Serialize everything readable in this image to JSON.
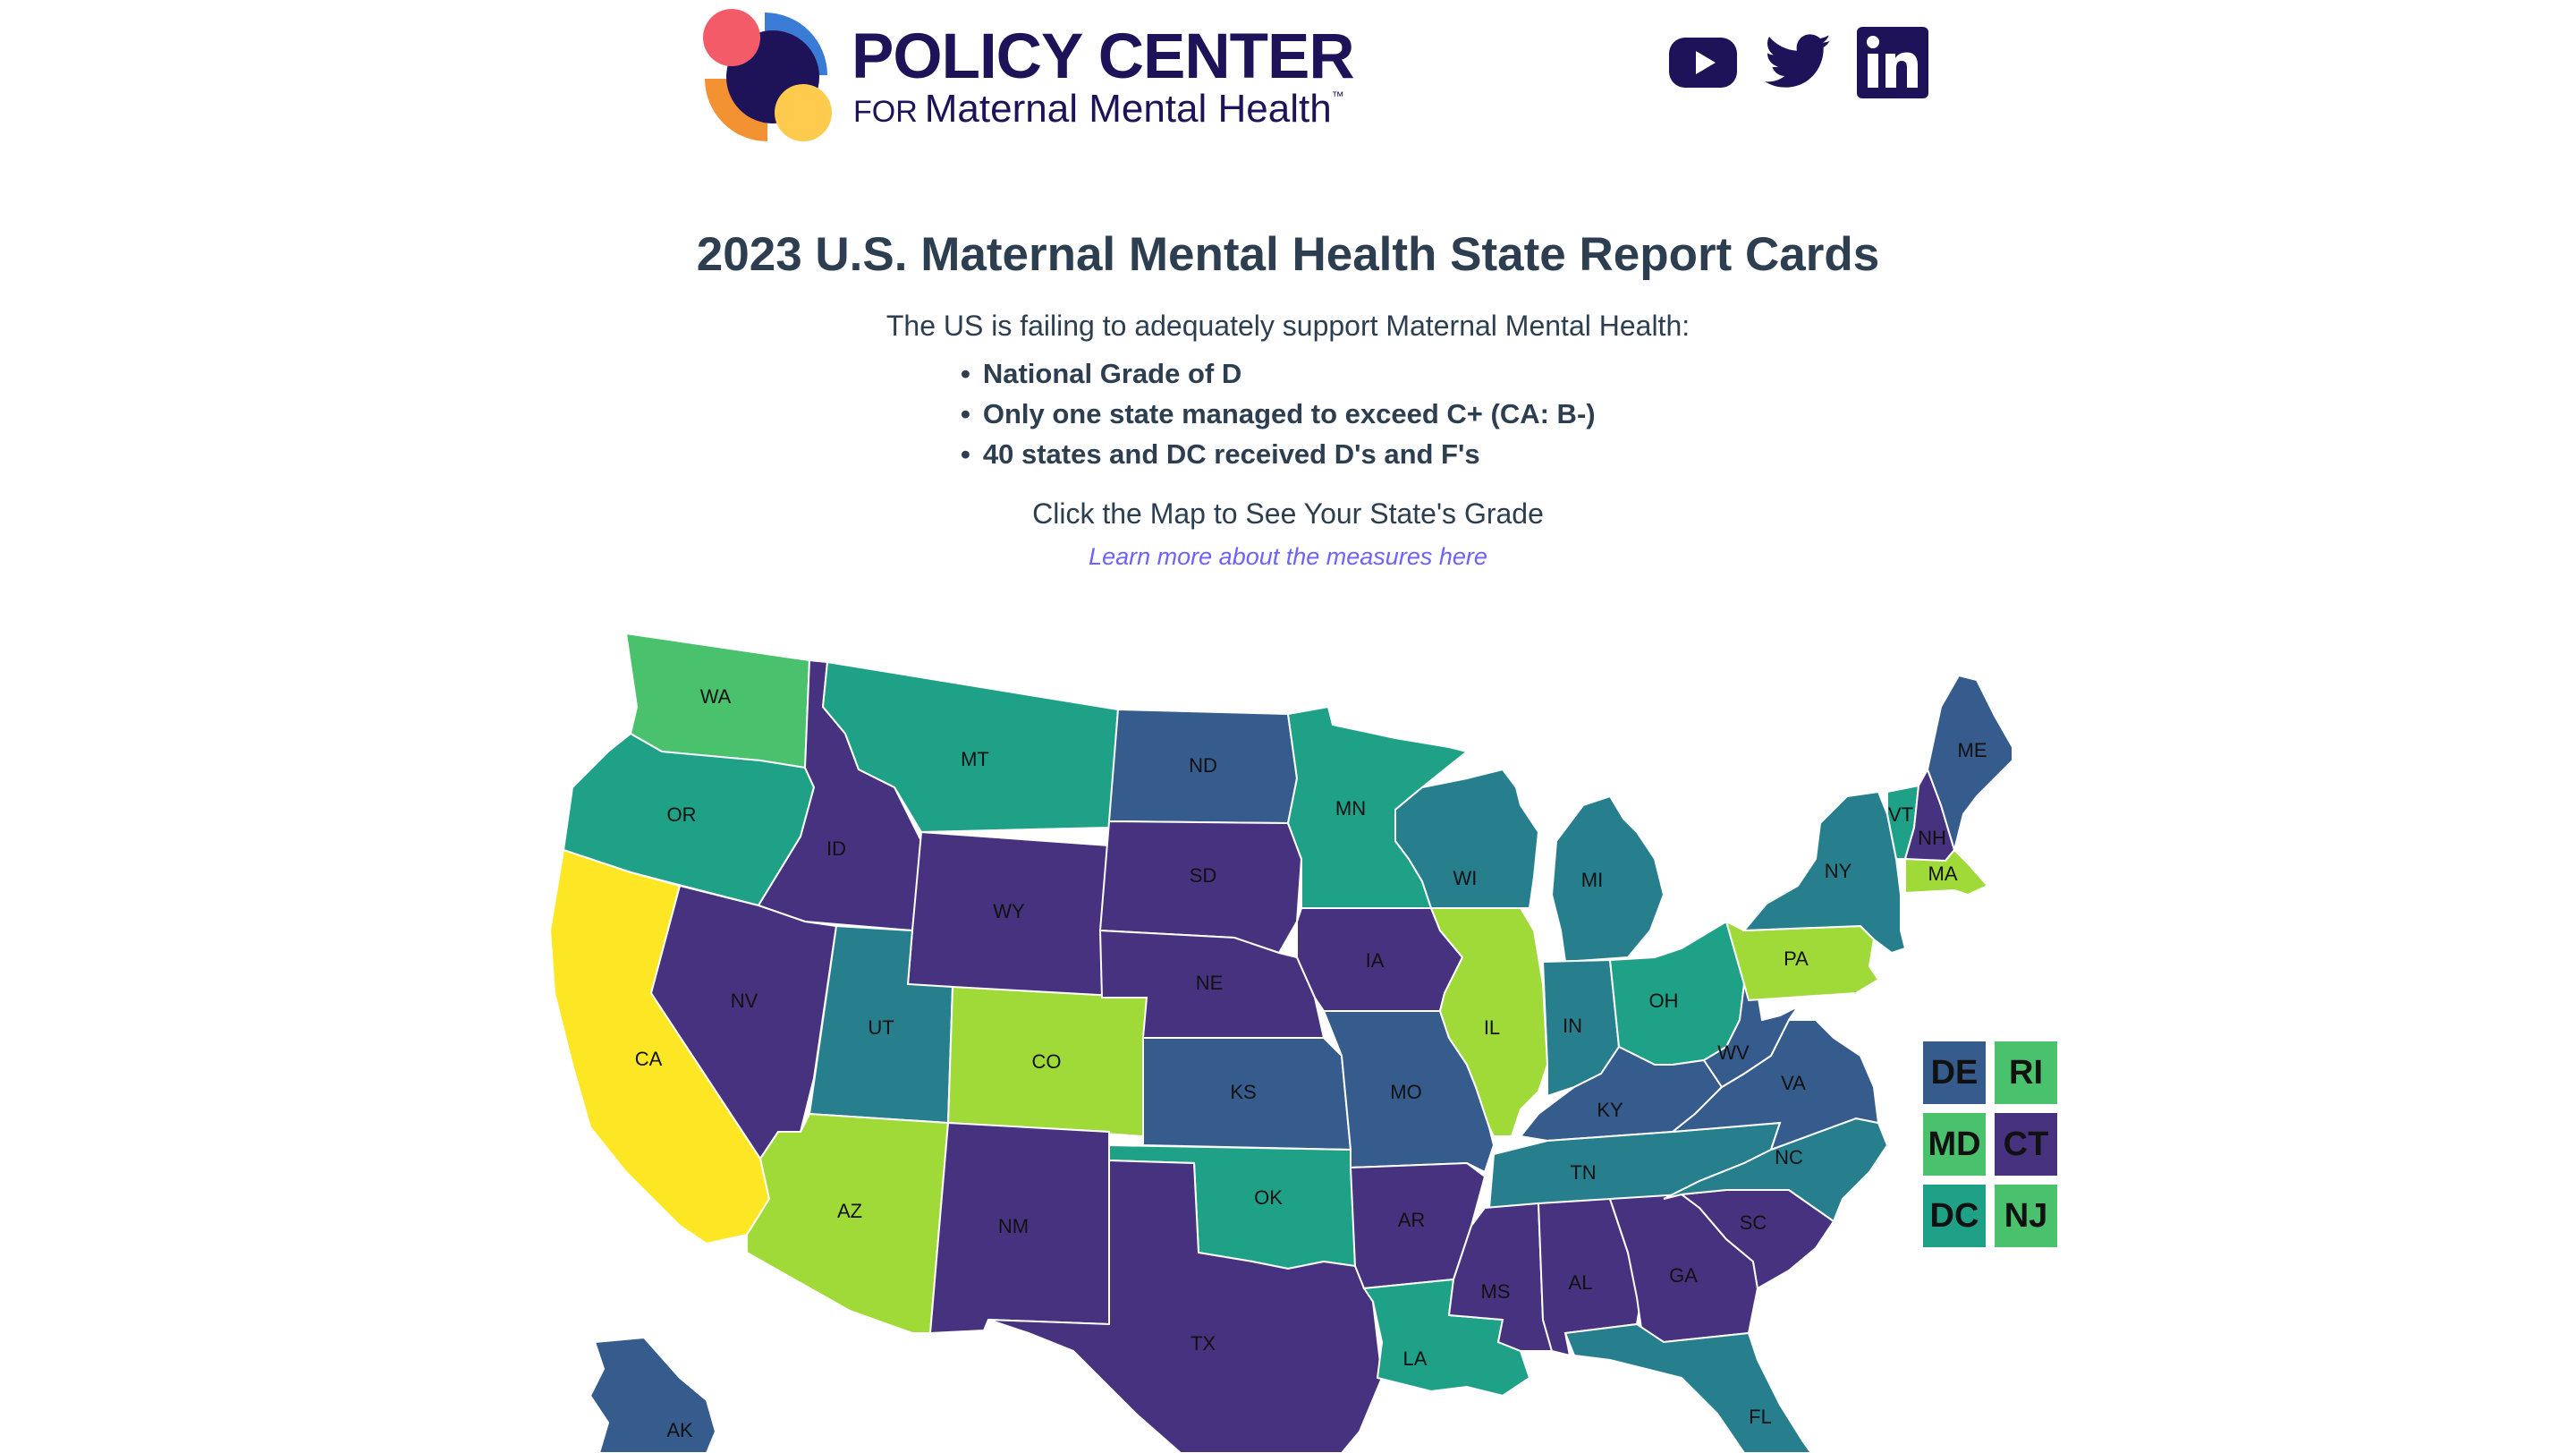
{
  "header": {
    "brand_line1": "POLICY CENTER",
    "brand_line2_prefix": "FOR",
    "brand_line2": "Maternal Mental Health",
    "brand_tm": "™",
    "social": [
      "youtube-icon",
      "twitter-icon",
      "linkedin-icon"
    ]
  },
  "main": {
    "title": "2023 U.S. Maternal Mental Health State Report Cards",
    "intro": "The US is failing to adequately support Maternal Mental Health:",
    "bullets": [
      "National Grade of D",
      "Only one state managed to exceed C+ (CA: B-)",
      "40 states and DC received D's and F's"
    ],
    "click_text": "Click the Map to See Your State's Grade",
    "learn_link": "Learn more about the measures here"
  },
  "colors": {
    "yellow": "#fde725",
    "lime": "#a0da39",
    "green": "#4ac16d",
    "teal_green": "#1fa187",
    "teal": "#277f8e",
    "blue": "#365c8d",
    "purple": "#46327e",
    "brand_navy": "#1e1259",
    "link": "#6c63ff"
  },
  "states": [
    {
      "abbr": "WA"
    },
    {
      "abbr": "OR"
    },
    {
      "abbr": "CA"
    },
    {
      "abbr": "ID"
    },
    {
      "abbr": "NV"
    },
    {
      "abbr": "MT"
    },
    {
      "abbr": "WY"
    },
    {
      "abbr": "UT"
    },
    {
      "abbr": "AZ"
    },
    {
      "abbr": "CO"
    },
    {
      "abbr": "NM"
    },
    {
      "abbr": "ND"
    },
    {
      "abbr": "SD"
    },
    {
      "abbr": "NE"
    },
    {
      "abbr": "KS"
    },
    {
      "abbr": "OK"
    },
    {
      "abbr": "TX"
    },
    {
      "abbr": "MN"
    },
    {
      "abbr": "IA"
    },
    {
      "abbr": "MO"
    },
    {
      "abbr": "AR"
    },
    {
      "abbr": "LA"
    },
    {
      "abbr": "WI"
    },
    {
      "abbr": "IL"
    },
    {
      "abbr": "MI"
    },
    {
      "abbr": "IN"
    },
    {
      "abbr": "OH"
    },
    {
      "abbr": "KY"
    },
    {
      "abbr": "TN"
    },
    {
      "abbr": "MS"
    },
    {
      "abbr": "AL"
    },
    {
      "abbr": "GA"
    },
    {
      "abbr": "FL"
    },
    {
      "abbr": "SC"
    },
    {
      "abbr": "NC"
    },
    {
      "abbr": "VA"
    },
    {
      "abbr": "WV"
    },
    {
      "abbr": "PA"
    },
    {
      "abbr": "NY"
    },
    {
      "abbr": "VT"
    },
    {
      "abbr": "NH"
    },
    {
      "abbr": "ME"
    },
    {
      "abbr": "MA"
    },
    {
      "abbr": "AK"
    }
  ],
  "small_states": [
    {
      "abbr": "DE"
    },
    {
      "abbr": "RI"
    },
    {
      "abbr": "MD"
    },
    {
      "abbr": "CT"
    },
    {
      "abbr": "DC"
    },
    {
      "abbr": "NJ"
    }
  ]
}
